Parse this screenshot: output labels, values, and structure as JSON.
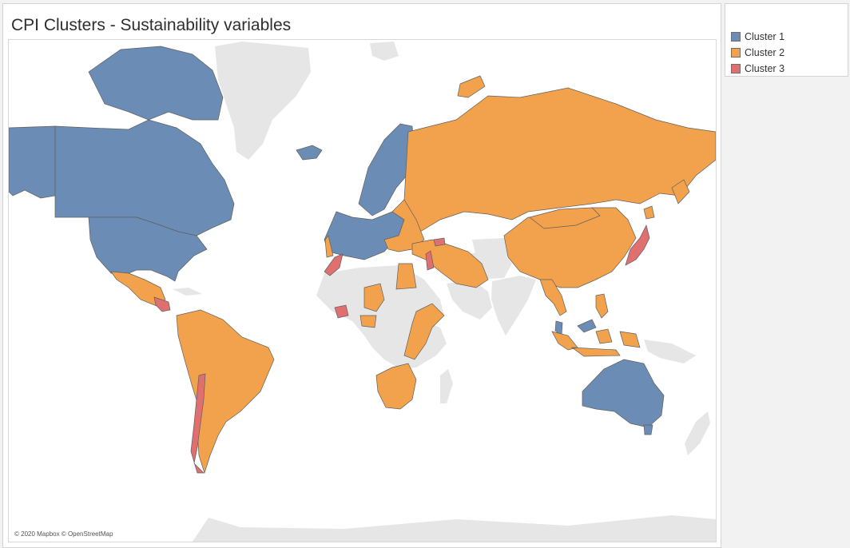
{
  "title": "CPI Clusters - Sustainability variables",
  "attribution": "© 2020 Mapbox © OpenStreetMap",
  "legend": {
    "items": [
      {
        "label": "Cluster 1",
        "color": "#6b8db5"
      },
      {
        "label": "Cluster 2",
        "color": "#f2a24c"
      },
      {
        "label": "Cluster 3",
        "color": "#e06f70"
      }
    ]
  },
  "colors": {
    "no_data_land": "#e6e6e6",
    "country_border": "#5f5f5f",
    "ocean": "#ffffff"
  },
  "regions": [
    {
      "name": "Canada",
      "cluster": 1
    },
    {
      "name": "United States",
      "cluster": 1
    },
    {
      "name": "Alaska",
      "cluster": 1
    },
    {
      "name": "Arctic Islands",
      "cluster": 1
    },
    {
      "name": "Iceland",
      "cluster": 1
    },
    {
      "name": "Western Europe",
      "cluster": 1
    },
    {
      "name": "Scandinavia",
      "cluster": 1
    },
    {
      "name": "Australia",
      "cluster": 1
    },
    {
      "name": "Tasmania",
      "cluster": 1
    },
    {
      "name": "South Korea",
      "cluster": 1
    },
    {
      "name": "Malaysia",
      "cluster": 1
    },
    {
      "name": "Russia",
      "cluster": 2
    },
    {
      "name": "China",
      "cluster": 2
    },
    {
      "name": "Mongolia",
      "cluster": 2
    },
    {
      "name": "Mexico",
      "cluster": 2
    },
    {
      "name": "South America",
      "cluster": 2
    },
    {
      "name": "Eastern Europe",
      "cluster": 2
    },
    {
      "name": "Middle East",
      "cluster": 2
    },
    {
      "name": "Egypt",
      "cluster": 2
    },
    {
      "name": "Southern Africa",
      "cluster": 2
    },
    {
      "name": "East Africa",
      "cluster": 2
    },
    {
      "name": "Indonesia",
      "cluster": 2
    },
    {
      "name": "Philippines",
      "cluster": 2
    },
    {
      "name": "Southeast Asia",
      "cluster": 2
    },
    {
      "name": "Japan",
      "cluster": 3
    },
    {
      "name": "Chile",
      "cluster": 3
    },
    {
      "name": "Morocco",
      "cluster": 3
    },
    {
      "name": "Israel",
      "cluster": 3
    },
    {
      "name": "Georgia",
      "cluster": 3
    },
    {
      "name": "Central America",
      "cluster": 3
    },
    {
      "name": "West Africa",
      "cluster": 3
    }
  ]
}
